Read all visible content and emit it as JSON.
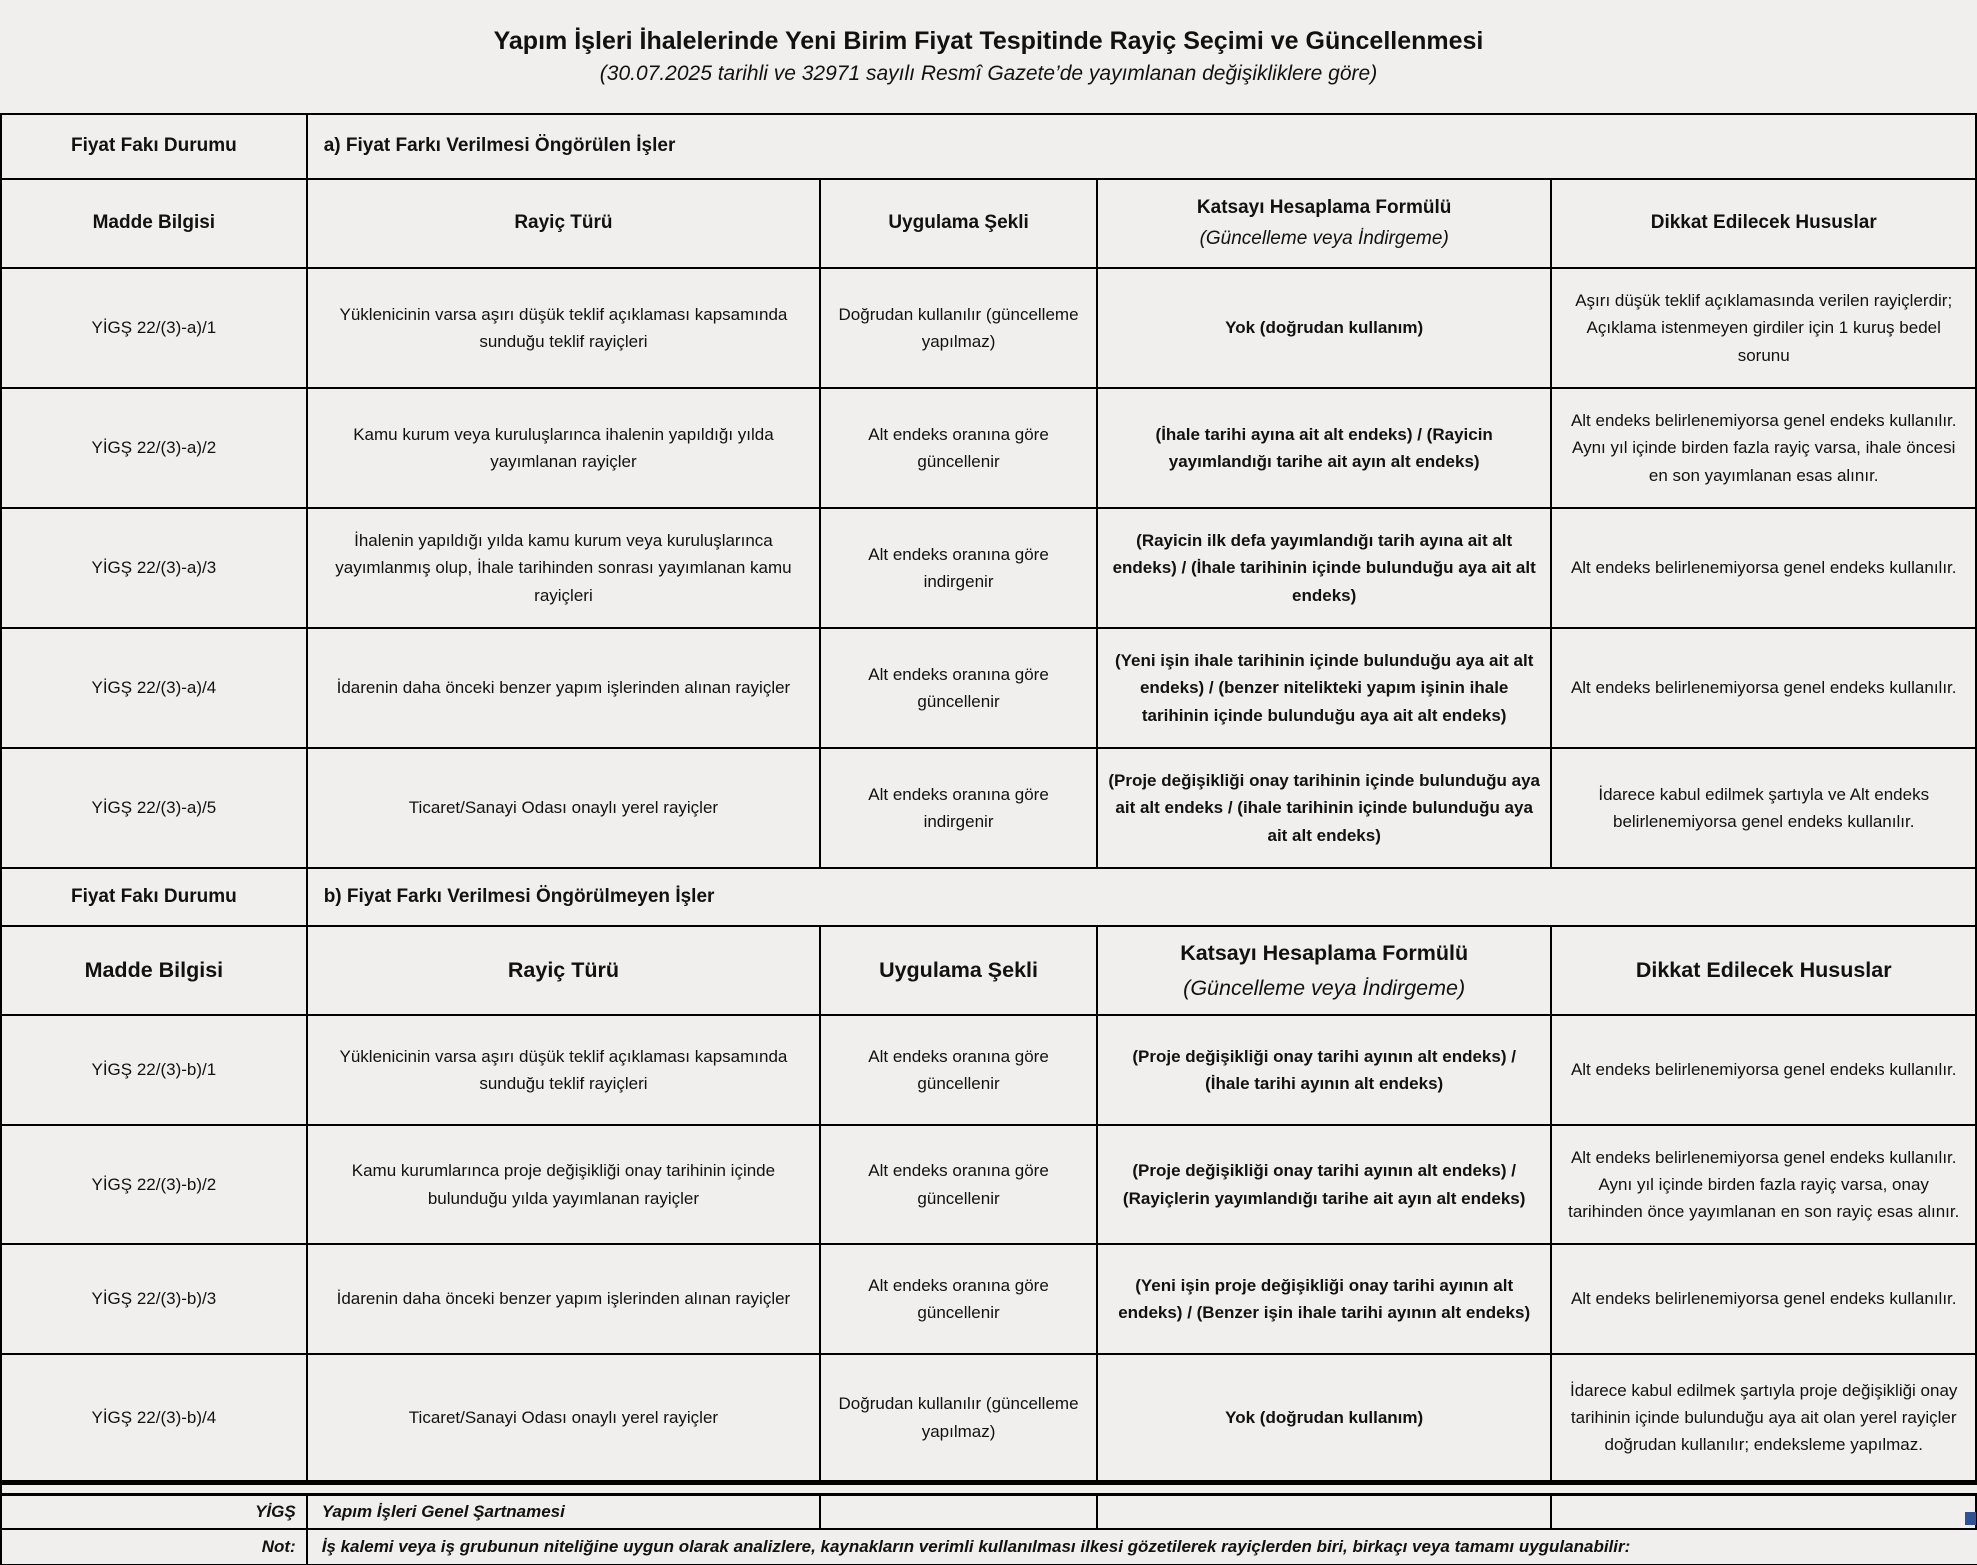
{
  "page": {
    "title": "Yapım İşleri İhalelerinde Yeni Birim Fiyat Tespitinde Rayiç Seçimi ve Güncellenmesi",
    "subtitle": "(30.07.2025 tarihli ve 32971 sayılı Resmî Gazete’de yayımlanan değişikliklere göre)"
  },
  "band_label": "Fiyat Fakı Durumu",
  "column_headers": {
    "madde": "Madde Bilgisi",
    "rayic": "Rayiç Türü",
    "uygulama": "Uygulama Şekli",
    "formul_line1": "Katsayı Hesaplama Formülü",
    "formul_line2": "(Güncelleme veya İndirgeme)",
    "dikkat": "Dikkat Edilecek Hususlar"
  },
  "sections": [
    {
      "band_value": "a) Fiyat Farkı Verilmesi Öngörülen İşler",
      "rows": [
        {
          "madde": "YİGŞ 22/(3)-a)/1",
          "rayic": "Yüklenicinin varsa aşırı düşük teklif açıklaması kapsamında  sunduğu teklif rayiçleri",
          "uygulama": "Doğrudan kullanılır (güncelleme yapılmaz)",
          "formul": "Yok (doğrudan kullanım)",
          "dikkat": "Aşırı düşük teklif açıklamasında verilen rayiçlerdir; Açıklama istenmeyen girdiler için 1 kuruş bedel sorunu"
        },
        {
          "madde": "YİGŞ 22/(3)-a)/2",
          "rayic": "Kamu kurum veya kuruluşlarınca ihalenin yapıldığı yılda yayımlanan rayiçler",
          "uygulama": "Alt endeks oranına göre güncellenir",
          "formul": "(İhale tarihi ayına ait alt endeks) / (Rayicin yayımlandığı tarihe ait ayın alt endeks)",
          "dikkat": "Alt endeks belirlenemiyorsa genel endeks kullanılır. Aynı yıl içinde birden fazla rayiç varsa, ihale öncesi en son yayımlanan esas alınır."
        },
        {
          "madde": "YİGŞ 22/(3)-a)/3",
          "rayic": "İhalenin yapıldığı yılda kamu kurum veya kuruluşlarınca yayımlanmış olup, İhale tarihinden sonrası yayımlanan kamu rayiçleri",
          "uygulama": "Alt endeks oranına göre indirgenir",
          "formul": "(Rayicin ilk defa yayımlandığı tarih ayına ait alt endeks) / (İhale tarihinin içinde bulunduğu aya ait alt endeks)",
          "dikkat": "Alt endeks belirlenemiyorsa genel endeks kullanılır."
        },
        {
          "madde": "YİGŞ 22/(3)-a)/4",
          "rayic": "İdarenin daha önceki benzer yapım işlerinden alınan rayiçler",
          "uygulama": "Alt endeks oranına göre güncellenir",
          "formul": "(Yeni işin ihale tarihinin içinde bulunduğu aya ait alt endeks) / (benzer nitelikteki yapım işinin ihale tarihinin içinde bulunduğu aya ait alt endeks)",
          "dikkat": "Alt endeks belirlenemiyorsa genel endeks kullanılır."
        },
        {
          "madde": "YİGŞ 22/(3)-a)/5",
          "rayic": "Ticaret/Sanayi Odası onaylı yerel rayiçler",
          "uygulama": "Alt endeks oranına göre indirgenir",
          "formul": "(Proje değişikliği onay tarihinin içinde bulunduğu aya ait alt endeks / (ihale tarihinin içinde bulunduğu aya ait alt  endeks)",
          "dikkat": "İdarece kabul edilmek şartıyla ve Alt endeks belirlenemiyorsa genel endeks kullanılır."
        }
      ]
    },
    {
      "band_value": "b) Fiyat Farkı Verilmesi Öngörülmeyen İşler",
      "rows": [
        {
          "madde": "YİGŞ 22/(3)-b)/1",
          "rayic": "Yüklenicinin varsa aşırı düşük teklif açıklaması kapsamında  sunduğu teklif rayiçleri",
          "uygulama": "Alt endeks oranına göre güncellenir",
          "formul": "(Proje değişikliği onay tarihi ayının alt endeks) / (İhale tarihi ayının alt endeks)",
          "dikkat": "Alt endeks belirlenemiyorsa genel endeks kullanılır."
        },
        {
          "madde": "YİGŞ 22/(3)-b)/2",
          "rayic": "Kamu kurumlarınca proje değişikliği onay tarihinin içinde bulunduğu yılda yayımlanan rayiçler",
          "uygulama": "Alt endeks oranına göre güncellenir",
          "formul": "(Proje değişikliği onay tarihi ayının alt endeks) / (Rayiçlerin yayımlandığı tarihe ait ayın alt endeks)",
          "dikkat": "Alt endeks belirlenemiyorsa genel endeks kullanılır. Aynı yıl içinde birden fazla rayiç varsa, onay tarihinden önce yayımlanan en son rayiç esas alınır."
        },
        {
          "madde": "YİGŞ 22/(3)-b)/3",
          "rayic": "İdarenin daha önceki benzer yapım işlerinden alınan rayiçler",
          "uygulama": "Alt endeks oranına göre güncellenir",
          "formul": "(Yeni işin proje değişikliği onay tarihi ayının alt endeks) / (Benzer işin ihale tarihi ayının alt endeks)",
          "dikkat": "Alt endeks belirlenemiyorsa genel endeks kullanılır."
        },
        {
          "madde": "YİGŞ 22/(3)-b)/4",
          "rayic": "Ticaret/Sanayi Odası onaylı yerel rayiçler",
          "uygulama": "Doğrudan kullanılır (güncelleme yapılmaz)",
          "formul": "Yok (doğrudan kullanım)",
          "dikkat": "İdarece kabul edilmek şartıyla proje değişikliği onay tarihinin içinde bulunduğu aya ait olan yerel rayiçler doğrudan kullanılır; endeksleme yapılmaz."
        }
      ]
    }
  ],
  "footer": {
    "abbr_label": "YİGŞ",
    "abbr_value": "Yapım İşleri Genel Şartnamesi",
    "note_label": "Not:",
    "note_value": "İş kalemi veya iş grubunun niteliğine uygun olarak analizlere, kaynakların verimli kullanılması ilkesi gözetilerek rayiçlerden biri, birkaçı veya tamamı uygulanabilir:"
  },
  "colors": {
    "page_bg": "#f1efee",
    "border": "#000000",
    "marker_blue": "#2e5395"
  }
}
